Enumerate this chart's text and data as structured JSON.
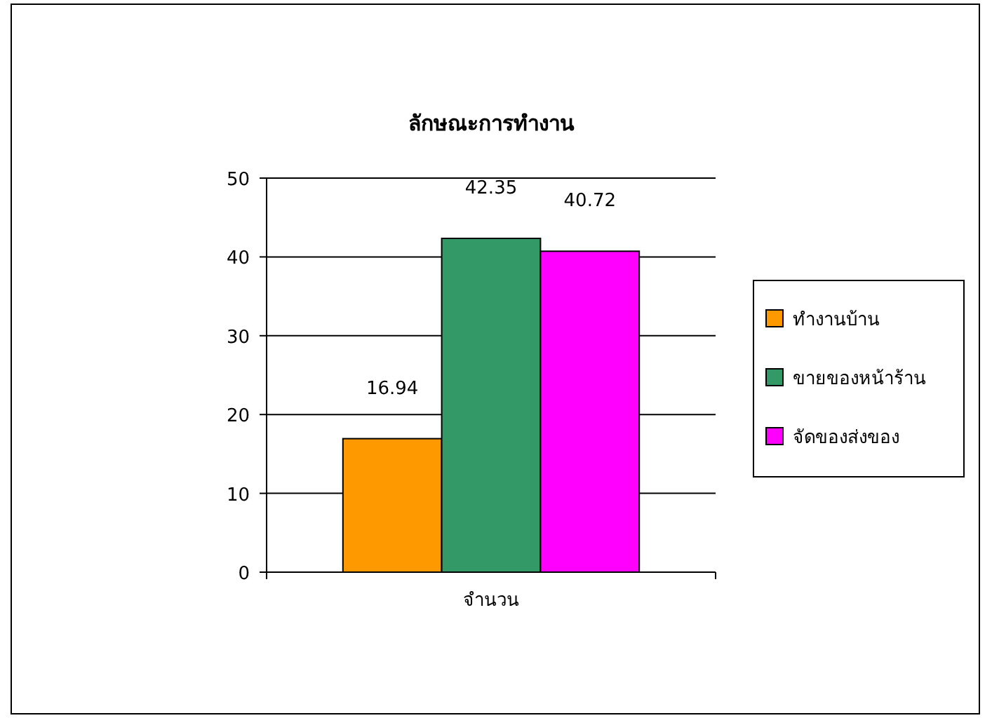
{
  "chart_data": {
    "type": "bar",
    "title": "ลักษณะการทำงาน",
    "categories": [
      "จำนวน"
    ],
    "series": [
      {
        "name": "ทำงานบ้าน",
        "color": "#ff9900",
        "values": [
          16.94
        ]
      },
      {
        "name": "ขายของหน้าร้าน",
        "color": "#339966",
        "values": [
          42.35
        ]
      },
      {
        "name": "จัดของส่งของ",
        "color": "#ff00ff",
        "values": [
          40.72
        ]
      }
    ],
    "ylim": [
      0,
      50
    ],
    "yticks": [
      0,
      10,
      20,
      30,
      40,
      50
    ],
    "grid": "y",
    "legend": "right",
    "data_labels": true
  }
}
